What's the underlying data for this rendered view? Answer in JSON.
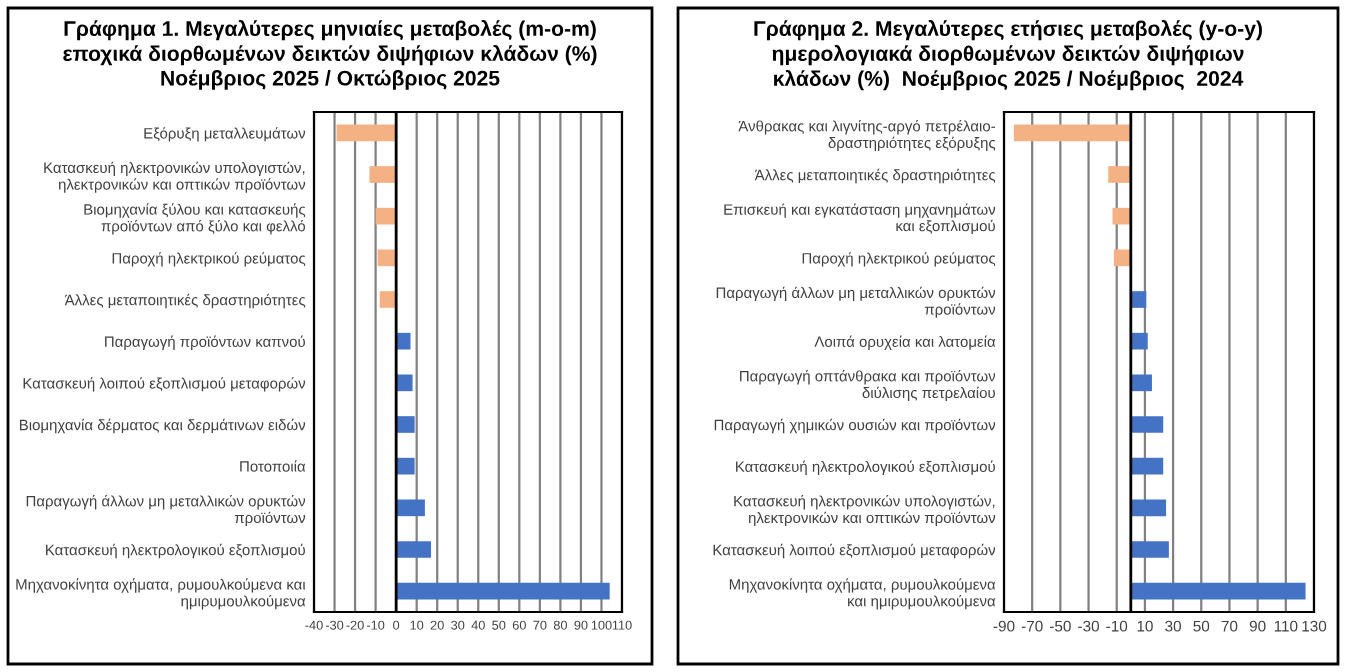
{
  "chart_data": [
    {
      "type": "bar",
      "orientation": "horizontal",
      "title": "Γράφημα 1. Μεγαλύτερες μηνιαίες μεταβολές (m-o-m)\nεποχικά διορθωμένων δεικτών διψήφιων κλάδων (%)\nΝοέμβριος 2025 / Οκτώβριος 2025",
      "categories": [
        "Εξόρυξη μεταλλευμάτων",
        "Κατασκευή ηλεκτρονικών υπολογιστών,\nηλεκτρονικών και οπτικών προϊόντων",
        "Βιομηχανία ξύλου και κατασκευής\nπροϊόντων από ξύλο και φελλό",
        "Παροχή ηλεκτρικού ρεύματος",
        "Άλλες μεταποιητικές δραστηριότητες",
        "Παραγωγή προϊόντων καπνού",
        "Κατασκευή λοιπού εξοπλισμού μεταφορών",
        "Βιομηχανία δέρματος και δερμάτινων ειδών",
        "Ποτοποιία",
        "Παραγωγή άλλων μη μεταλλικών ορυκτών\nπροϊόντων",
        "Κατασκευή ηλεκτρολογικού εξοπλισμού",
        "Μηχανοκίνητα οχήματα, ρυμουλκούμενα και\nημιρυμουλκούμενα"
      ],
      "values": [
        -29,
        -13,
        -10,
        -9,
        -8,
        7,
        8,
        9,
        9,
        14,
        17,
        104
      ],
      "colors": [
        "#f4b183",
        "#f4b183",
        "#f4b183",
        "#f4b183",
        "#f4b183",
        "#4472c4",
        "#4472c4",
        "#4472c4",
        "#4472c4",
        "#4472c4",
        "#4472c4",
        "#4472c4"
      ],
      "xlim": [
        -40,
        110
      ],
      "xticks": [
        -40,
        -30,
        -20,
        -10,
        0,
        10,
        20,
        30,
        40,
        50,
        60,
        70,
        80,
        90,
        100,
        110
      ],
      "grid": "x"
    },
    {
      "type": "bar",
      "orientation": "horizontal",
      "title": "Γράφημα 2. Μεγαλύτερες ετήσιες μεταβολές (y-o-y)\nημερολογιακά διορθωμένων δεικτών διψήφιων\nκλάδων (%)  Νοέμβριος 2025 / Νοέμβριος  2024",
      "categories": [
        "Άνθρακας και λιγνίτης-αργό πετρέλαιο-\nδραστηριότητες εξόρυξης",
        "Άλλες μεταποιητικές δραστηριότητες",
        "Επισκευή και εγκατάσταση μηχανημάτων\nκαι εξοπλισμού",
        "Παροχή ηλεκτρικού ρεύματος",
        "Παραγωγή άλλων μη μεταλλικών ορυκτών\nπροϊόντων",
        "Λοιπά ορυχεία και λατομεία",
        "Παραγωγή οπτάνθρακα και προϊόντων\nδιύλισης πετρελαίου",
        "Παραγωγή χημικών ουσιών και προϊόντων",
        "Κατασκευή ηλεκτρολογικού εξοπλισμού",
        "Κατασκευή ηλεκτρονικών υπολογιστών,\nηλεκτρονικών και οπτικών προϊόντων",
        "Κατασκευή λοιπού εξοπλισμού μεταφορών",
        "Μηχανοκίνητα οχήματα, ρυμουλκούμενα\nκαι ημιρυμουλκούμενα"
      ],
      "values": [
        -83,
        -16,
        -13,
        -12,
        11,
        12,
        15,
        23,
        23,
        25,
        27,
        124
      ],
      "colors": [
        "#f4b183",
        "#f4b183",
        "#f4b183",
        "#f4b183",
        "#4472c4",
        "#4472c4",
        "#4472c4",
        "#4472c4",
        "#4472c4",
        "#4472c4",
        "#4472c4",
        "#4472c4"
      ],
      "xlim": [
        -90,
        130
      ],
      "xticks": [
        -90,
        -70,
        -50,
        -30,
        -10,
        10,
        30,
        50,
        70,
        90,
        110,
        130
      ],
      "grid": "x"
    }
  ]
}
